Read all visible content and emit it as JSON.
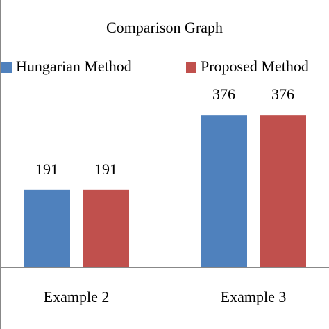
{
  "chart_data": {
    "type": "bar",
    "title": "Comparison Graph",
    "categories": [
      "Example 2",
      "Example 3"
    ],
    "series": [
      {
        "name": "Hungarian Method",
        "color": "#4f81bd",
        "values": [
          191,
          376
        ]
      },
      {
        "name": "Proposed Method",
        "color": "#c0504d",
        "values": [
          191,
          376
        ]
      }
    ]
  }
}
